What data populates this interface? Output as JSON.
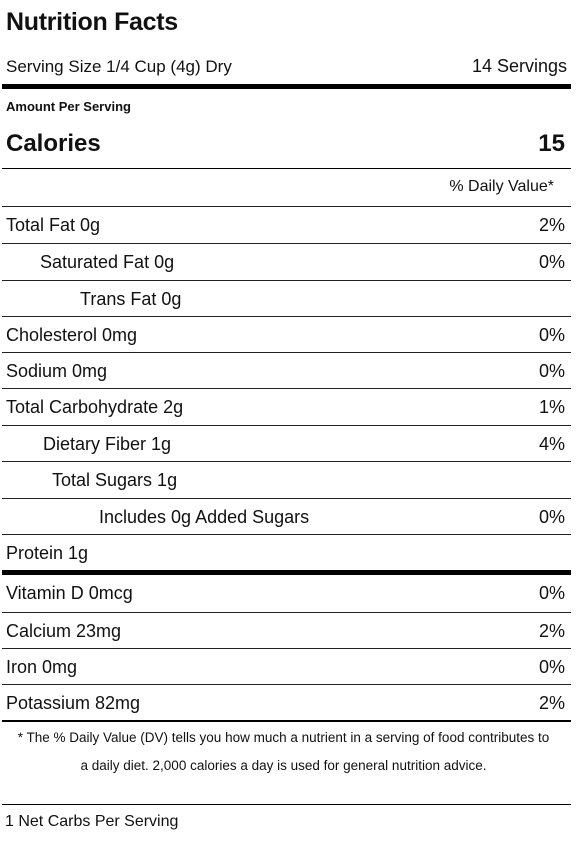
{
  "title": "Nutrition Facts",
  "serving": {
    "size": "Serving Size 1/4 Cup (4g) Dry",
    "count": "14 Servings"
  },
  "amount_per_serving": "Amount Per Serving",
  "calories": {
    "label": "Calories",
    "value": "15"
  },
  "daily_value_header": "% Daily Value*",
  "nutrients": [
    {
      "name": "Total Fat 0g",
      "dv": "2%"
    },
    {
      "name": "Saturated Fat 0g",
      "dv": "0%"
    },
    {
      "name": "Trans Fat 0g",
      "dv": ""
    },
    {
      "name": "Cholesterol 0mg",
      "dv": "0%"
    },
    {
      "name": "Sodium 0mg",
      "dv": "0%"
    },
    {
      "name": "Total Carbohydrate 2g",
      "dv": "1%"
    },
    {
      "name": "Dietary Fiber 1g",
      "dv": "4%"
    },
    {
      "name": "Total Sugars 1g",
      "dv": ""
    },
    {
      "name": "Includes 0g Added Sugars",
      "dv": "0%"
    },
    {
      "name": "Protein 1g",
      "dv": ""
    }
  ],
  "vitamins": [
    {
      "name": "Vitamin D 0mcg",
      "dv": "0%"
    },
    {
      "name": "Calcium 23mg",
      "dv": "2%"
    },
    {
      "name": "Iron 0mg",
      "dv": "0%"
    },
    {
      "name": "Potassium 82mg",
      "dv": "2%"
    }
  ],
  "footnote": "* The % Daily Value (DV) tells you how much a nutrient in a serving of food contributes to a daily diet. 2,000 calories a day is used for general nutrition advice.",
  "net_carbs": "1 Net Carbs Per Serving"
}
